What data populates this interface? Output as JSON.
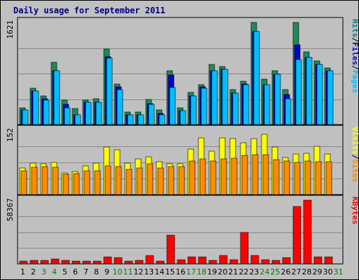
{
  "chart_data": {
    "type": "bar",
    "title": "Daily usage for September 2011",
    "categories": [
      "1",
      "2",
      "3",
      "4",
      "5",
      "6",
      "7",
      "8",
      "9",
      "10",
      "11",
      "12",
      "13",
      "14",
      "15",
      "16",
      "17",
      "18",
      "19",
      "20",
      "21",
      "22",
      "23",
      "24",
      "25",
      "26",
      "27",
      "28",
      "29",
      "30",
      "31"
    ],
    "weekend_days": [
      "3",
      "4",
      "10",
      "11",
      "17",
      "18",
      "24",
      "25",
      "31"
    ],
    "panels": [
      {
        "id": "hits-files-pages",
        "ymax_label": "1621",
        "ymax": 1621,
        "legend": [
          "Pages",
          "/",
          "Files",
          "/",
          "Hits"
        ],
        "series": [
          {
            "name": "Hits",
            "color": "#1e8a5a",
            "values": [
              270,
              580,
              460,
              990,
              390,
              260,
              390,
              410,
              1200,
              640,
              200,
              200,
              400,
              230,
              860,
              270,
              510,
              630,
              950,
              920,
              560,
              690,
              1621,
              720,
              860,
              560,
              1621,
              1150,
              1010,
              900
            ]
          },
          {
            "name": "Files",
            "color": "#0000cc",
            "values": [
              230,
              530,
              410,
              860,
              320,
              160,
              350,
              350,
              1080,
              600,
              160,
              160,
              330,
              180,
              790,
              220,
              460,
              600,
              860,
              880,
              500,
              640,
              1480,
              630,
              800,
              480,
              1270,
              1070,
              960,
              860
            ]
          },
          {
            "name": "Pages",
            "color": "#00bfff",
            "values": [
              230,
              530,
              390,
              860,
              270,
              160,
              350,
              350,
              1050,
              560,
              150,
              150,
              320,
              160,
              590,
              220,
              460,
              580,
              860,
              880,
              500,
              630,
              1480,
              630,
              800,
              410,
              1030,
              1070,
              950,
              860
            ]
          }
        ]
      },
      {
        "id": "visits-sites",
        "ymax_label": "152",
        "ymax": 152,
        "legend": [
          "Sites",
          "/",
          "Visits"
        ],
        "series": [
          {
            "name": "Visits",
            "color": "#ffff00",
            "values": [
              62,
              74,
              72,
              76,
              52,
              54,
              68,
              74,
              112,
              106,
              74,
              84,
              90,
              78,
              72,
              72,
              108,
              134,
              102,
              134,
              132,
              122,
              132,
              142,
              112,
              88,
              96,
              98,
              114,
              96
            ]
          },
          {
            "name": "Sites",
            "color": "#ff8c00",
            "values": [
              56,
              64,
              66,
              64,
              48,
              50,
              56,
              56,
              68,
              66,
              60,
              62,
              72,
              62,
              66,
              66,
              80,
              84,
              80,
              84,
              86,
              92,
              94,
              94,
              82,
              80,
              76,
              80,
              78,
              78
            ]
          }
        ]
      },
      {
        "id": "kbytes",
        "ymax_label": "58367",
        "ymax": 58367,
        "legend": [
          "KBytes"
        ],
        "series": [
          {
            "name": "KBytes",
            "color": "#ff0000",
            "values": [
              2600,
              3300,
              3300,
              4300,
              3300,
              2300,
              2300,
              2300,
              6300,
              5500,
              2600,
              3300,
              7700,
              2300,
              26000,
              4000,
              6300,
              6300,
              2900,
              7500,
              3800,
              29000,
              7700,
              4000,
              2900,
              5500,
              52700,
              58367,
              6500,
              6500
            ]
          }
        ]
      }
    ],
    "colors": {
      "background": "#c0c0c0",
      "title": "#000080",
      "weekday_label": "#000000",
      "weekend_label": "#008000",
      "legend_pages": "#00bfff",
      "legend_files": "#0000cc",
      "legend_hits": "#008080",
      "legend_sites": "#ff8c00",
      "legend_visits": "#ffff00",
      "legend_kbytes": "#ff0000",
      "legend_sep": "#000000"
    }
  }
}
